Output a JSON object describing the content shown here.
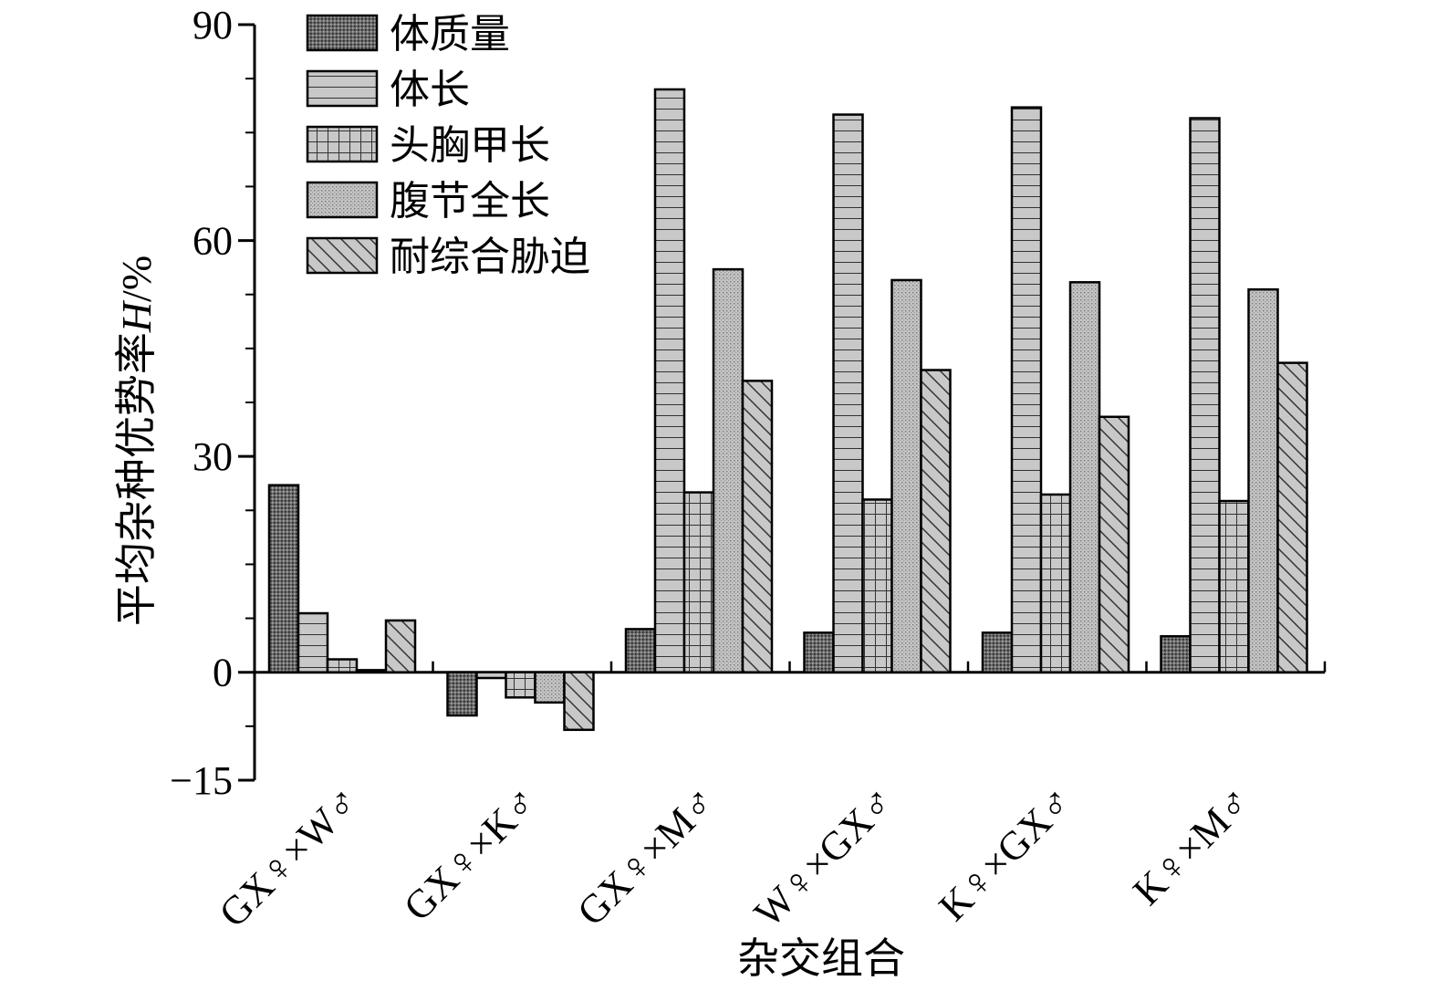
{
  "chart_data": {
    "type": "bar",
    "title": "",
    "xlabel": "杂交组合",
    "ylabel": "平均杂种优势率",
    "ylabel_italic": "H",
    "ylabel_unit": "/%",
    "ylim": [
      -15,
      90
    ],
    "yticks": [
      -15,
      0,
      30,
      60,
      90
    ],
    "ytick_labels": [
      "−15",
      "0",
      "30",
      "60",
      "90"
    ],
    "categories": [
      "GX♀×W♂",
      "GX♀×K♂",
      "GX♀×M♂",
      "W♀×GX♂",
      "K♀×GX♂",
      "K♀×M♂"
    ],
    "legend_position": "top-left",
    "grid": false,
    "series": [
      {
        "name": "体质量",
        "pattern": "dots",
        "values": [
          26,
          -6,
          6,
          5.5,
          5.5,
          5
        ]
      },
      {
        "name": "体长",
        "pattern": "hlines",
        "values": [
          8.2,
          -0.8,
          81,
          77.5,
          78.5,
          77
        ]
      },
      {
        "name": "头胸甲长",
        "pattern": "grid",
        "values": [
          1.8,
          -3.5,
          25,
          24,
          24.7,
          23.8
        ]
      },
      {
        "name": "腹节全长",
        "pattern": "fine-dots",
        "values": [
          0.3,
          -4.2,
          56,
          54.5,
          54.2,
          53.2
        ]
      },
      {
        "name": "耐综合胁迫",
        "pattern": "diag",
        "values": [
          7.2,
          -8,
          40.5,
          42,
          35.5,
          43
        ]
      }
    ]
  }
}
